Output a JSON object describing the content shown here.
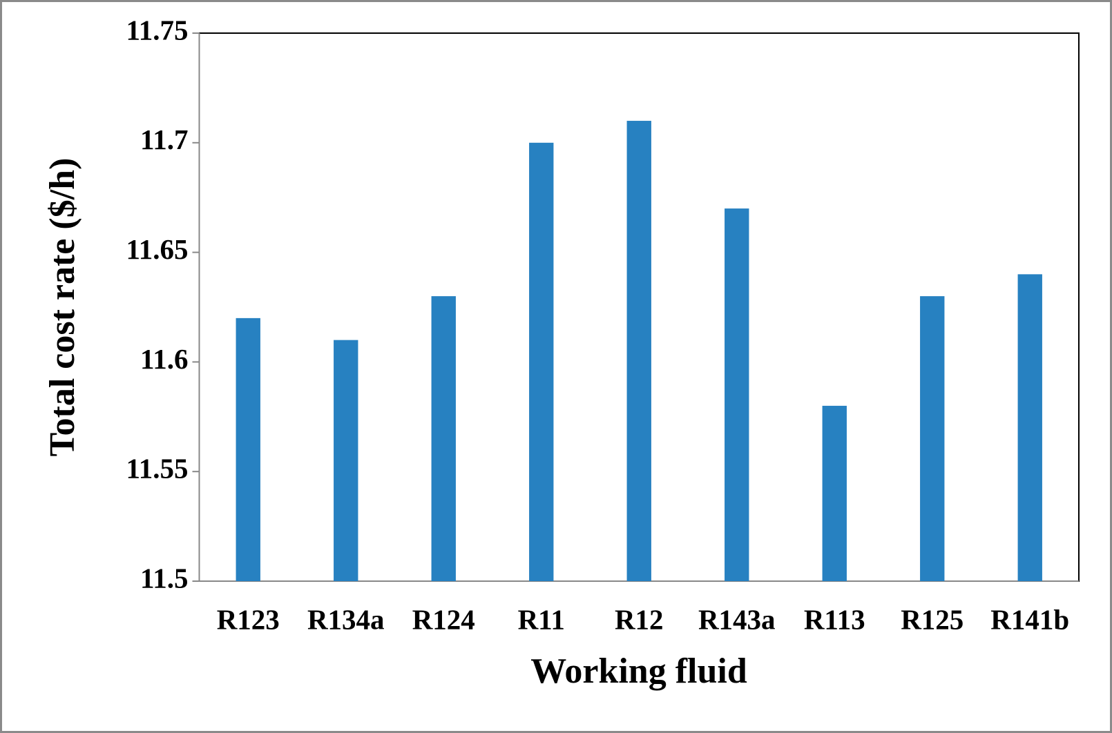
{
  "chart_data": {
    "type": "bar",
    "xlabel": "Working fluid",
    "ylabel": "Total cost rate ($/h)",
    "categories": [
      "R123",
      "R134a",
      "R124",
      "R11",
      "R12",
      "R143a",
      "R113",
      "R125",
      "R141b"
    ],
    "values": [
      11.62,
      11.61,
      11.63,
      11.7,
      11.71,
      11.67,
      11.58,
      11.63,
      11.64
    ],
    "color": "#2781c1",
    "ylim": [
      11.5,
      11.75
    ],
    "yticks": [
      11.5,
      11.55,
      11.6,
      11.65,
      11.7,
      11.75
    ],
    "grid": false
  }
}
